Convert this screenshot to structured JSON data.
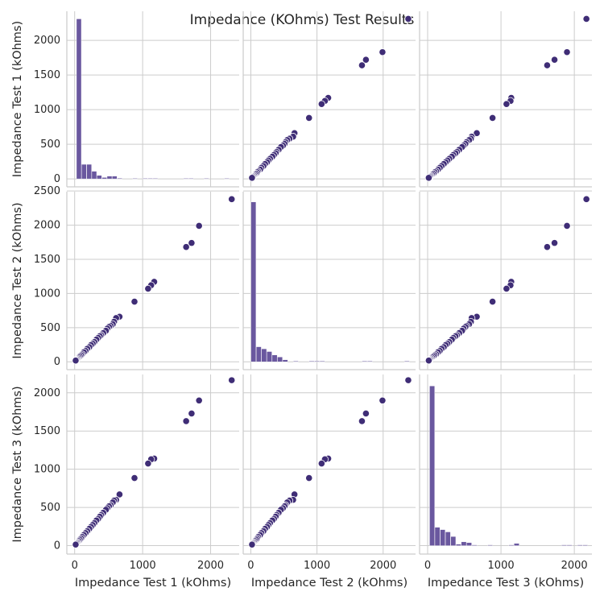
{
  "chart_data": {
    "type": "scatter",
    "kind": "pairplot",
    "title": "Impedance (KOhms) Test Results",
    "variables": [
      "Impedance Test 1 (kOhms)",
      "Impedance Test 2 (kOhms)",
      "Impedance Test 3 (kOhms)"
    ],
    "axis_labels": [
      "Impedance Test 1 (kOhms)",
      "Impedance Test 2 (kOhms)",
      "Impedance Test 3 (kOhms)"
    ],
    "ranges": [
      [
        -115,
        2420
      ],
      [
        -115,
        2490
      ],
      [
        -110,
        2240
      ]
    ],
    "ticks": [
      [
        0,
        500,
        1000,
        1500,
        2000
      ],
      [
        0,
        500,
        1000,
        1500,
        2000,
        2500
      ],
      [
        0,
        500,
        1000,
        1500,
        2000
      ]
    ],
    "x_ticks": [
      [
        0,
        1000,
        2000
      ],
      [
        0,
        1000,
        2000
      ],
      [
        0,
        1000,
        2000
      ]
    ],
    "grid": true,
    "colors": {
      "points": "#3f2d76",
      "bars": "#6a589f",
      "grid": "#cccccc",
      "text": "#262626"
    },
    "points": [
      [
        2310,
        2380,
        2165
      ],
      [
        1830,
        1990,
        1900
      ],
      [
        1720,
        1740,
        1730
      ],
      [
        1640,
        1680,
        1630
      ],
      [
        1170,
        1170,
        1140
      ],
      [
        1125,
        1120,
        1130
      ],
      [
        1080,
        1070,
        1075
      ],
      [
        880,
        880,
        885
      ],
      [
        660,
        660,
        670
      ],
      [
        610,
        640,
        600
      ],
      [
        580,
        585,
        590
      ],
      [
        560,
        550,
        565
      ],
      [
        530,
        525,
        530
      ],
      [
        505,
        510,
        515
      ],
      [
        480,
        485,
        490
      ],
      [
        460,
        455,
        470
      ],
      [
        420,
        420,
        430
      ],
      [
        390,
        390,
        400
      ],
      [
        370,
        375,
        380
      ],
      [
        345,
        350,
        350
      ],
      [
        320,
        325,
        330
      ],
      [
        290,
        290,
        295
      ],
      [
        265,
        265,
        270
      ],
      [
        240,
        245,
        245
      ],
      [
        215,
        215,
        220
      ],
      [
        185,
        190,
        190
      ],
      [
        160,
        160,
        165
      ],
      [
        135,
        140,
        140
      ],
      [
        110,
        110,
        115
      ],
      [
        95,
        95,
        95
      ],
      [
        75,
        80,
        78
      ],
      [
        60,
        62,
        60
      ],
      [
        45,
        48,
        45
      ],
      [
        35,
        35,
        35
      ],
      [
        25,
        25,
        25
      ],
      [
        15,
        18,
        15
      ]
    ],
    "histograms": [
      {
        "variable": "Impedance Test 1 (kOhms)",
        "bin_start": 25,
        "bin_width": 75,
        "counts": [
          2310,
          210,
          210,
          110,
          50,
          20,
          40,
          40,
          10,
          0,
          0,
          8,
          0,
          8,
          8,
          8,
          0,
          0,
          0,
          0,
          0,
          8,
          8,
          0,
          0,
          8,
          0,
          0,
          0,
          8
        ]
      },
      {
        "variable": "Impedance Test 2 (kOhms)",
        "bin_start": 0,
        "bin_width": 80,
        "counts": [
          2340,
          220,
          190,
          150,
          100,
          70,
          30,
          0,
          10,
          0,
          0,
          10,
          10,
          10,
          0,
          0,
          0,
          0,
          0,
          0,
          0,
          10,
          10,
          0,
          0,
          0,
          0,
          0,
          0,
          10
        ]
      },
      {
        "variable": "Impedance Test 3 (kOhms)",
        "bin_start": 25,
        "bin_width": 72,
        "counts": [
          2090,
          240,
          210,
          180,
          120,
          20,
          50,
          40,
          10,
          0,
          0,
          10,
          0,
          0,
          0,
          10,
          30,
          0,
          0,
          0,
          0,
          0,
          0,
          0,
          0,
          10,
          10,
          0,
          10,
          10
        ]
      }
    ]
  }
}
